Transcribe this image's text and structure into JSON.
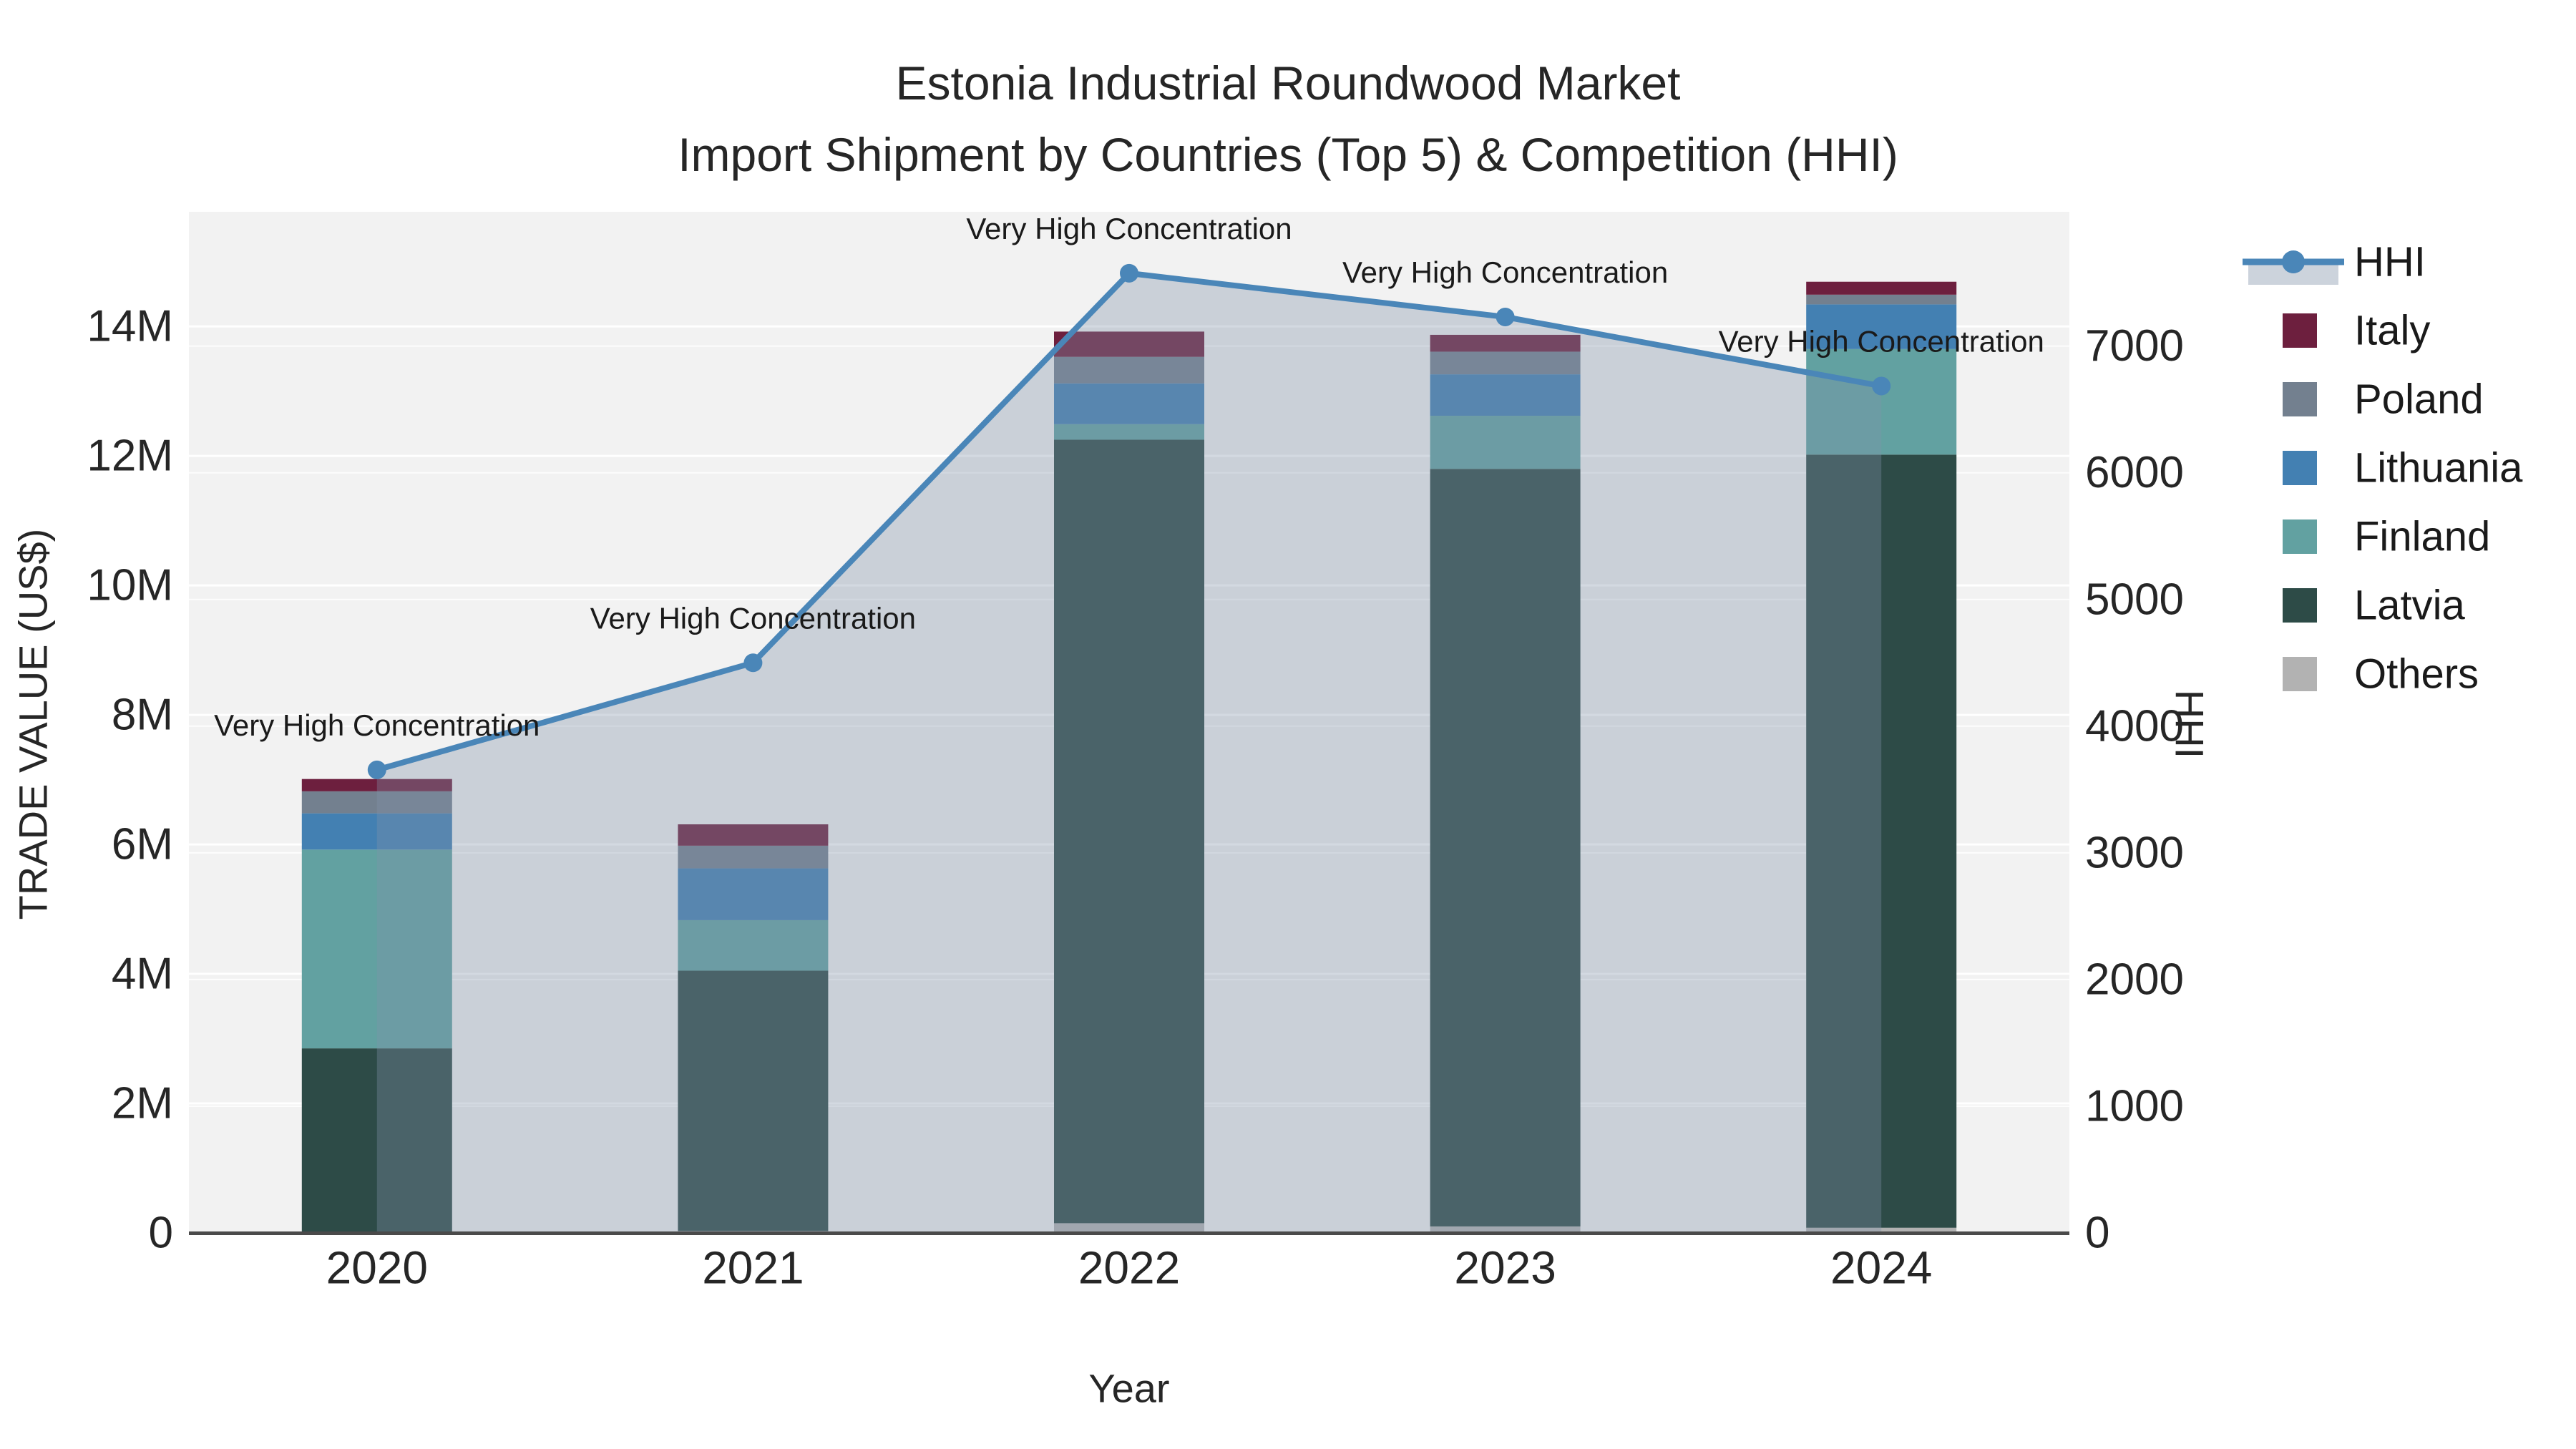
{
  "chart_data": {
    "type": "bar",
    "title": "Estonia Industrial Roundwood Market",
    "subtitle": "Import Shipment by Countries (Top 5) & Competition (HHI)",
    "xlabel": "Year",
    "ylabel_left": "TRADE VALUE (US$)",
    "ylabel_right": "HHI",
    "categories": [
      "2020",
      "2021",
      "2022",
      "2023",
      "2024"
    ],
    "series": [
      {
        "name": "Others",
        "color": "#b2b2b2",
        "values": [
          20000,
          30000,
          150000,
          100000,
          80000
        ]
      },
      {
        "name": "Latvia",
        "color": "#2d4b47",
        "values": [
          2830000,
          4020000,
          12100000,
          11700000,
          11940000
        ]
      },
      {
        "name": "Finland",
        "color": "#62a1a1",
        "values": [
          3070000,
          780000,
          240000,
          820000,
          1630000
        ]
      },
      {
        "name": "Lithuania",
        "color": "#4380b2",
        "values": [
          560000,
          800000,
          630000,
          640000,
          690000
        ]
      },
      {
        "name": "Poland",
        "color": "#73808f",
        "values": [
          340000,
          350000,
          410000,
          350000,
          150000
        ]
      },
      {
        "name": "Italy",
        "color": "#6d1f3e",
        "values": [
          190000,
          330000,
          390000,
          260000,
          200000
        ]
      }
    ],
    "hhi_line": {
      "name": "HHI",
      "color": "#4a86b8",
      "area_fill": "rgba(130,145,170,0.35)",
      "legend_band": "#ccd3dc",
      "values": [
        3655,
        4500,
        7575,
        7230,
        6685
      ]
    },
    "annotations": [
      {
        "text": "Very High Concentration"
      },
      {
        "text": "Very High Concentration"
      },
      {
        "text": "Very High Concentration"
      },
      {
        "text": "Very High Concentration"
      },
      {
        "text": "Very High Concentration"
      }
    ],
    "left_axis": {
      "tick_labels": [
        "0",
        "2M",
        "4M",
        "6M",
        "8M",
        "10M",
        "12M",
        "14M"
      ],
      "tick_values": [
        0,
        2000000,
        4000000,
        6000000,
        8000000,
        10000000,
        12000000,
        14000000
      ],
      "range": [
        0,
        15770000
      ]
    },
    "right_axis": {
      "tick_labels": [
        "0",
        "1000",
        "2000",
        "3000",
        "4000",
        "5000",
        "6000",
        "7000"
      ],
      "tick_values": [
        0,
        1000,
        2000,
        3000,
        4000,
        5000,
        6000,
        7000
      ],
      "range": [
        0,
        8060
      ]
    },
    "legend": [
      {
        "label": "HHI",
        "type": "line"
      },
      {
        "label": "Italy",
        "type": "swatch",
        "color": "#6d1f3e"
      },
      {
        "label": "Poland",
        "type": "swatch",
        "color": "#73808f"
      },
      {
        "label": "Lithuania",
        "type": "swatch",
        "color": "#4380b2"
      },
      {
        "label": "Finland",
        "type": "swatch",
        "color": "#62a1a1"
      },
      {
        "label": "Latvia",
        "type": "swatch",
        "color": "#2d4b47"
      },
      {
        "label": "Others",
        "type": "swatch",
        "color": "#b2b2b2"
      }
    ],
    "colors": {
      "plot_background": "#f2f2f2",
      "figure_background": "#ffffff",
      "gridline": "#ffffff",
      "axis_line": "#4a4a4a",
      "tick_text": "#262626",
      "annotation_text": "#1a1a1a"
    },
    "grid_on": true,
    "legend_position": "right"
  }
}
